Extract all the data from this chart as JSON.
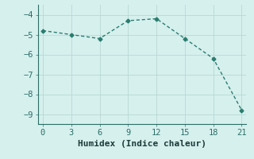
{
  "x": [
    0,
    3,
    6,
    9,
    12,
    15,
    18,
    21
  ],
  "y": [
    -4.8,
    -5.0,
    -5.2,
    -4.3,
    -4.2,
    -5.2,
    -6.2,
    -8.8
  ],
  "line_color": "#2a7d6e",
  "marker": "D",
  "marker_size": 2.5,
  "background_color": "#d6f0ee",
  "grid_color": "#b8d8d4",
  "xlabel": "Humidex (Indice chaleur)",
  "xlim": [
    -0.5,
    21.5
  ],
  "ylim": [
    -9.5,
    -3.5
  ],
  "xticks": [
    0,
    3,
    6,
    9,
    12,
    15,
    18,
    21
  ],
  "yticks": [
    -4,
    -5,
    -6,
    -7,
    -8,
    -9
  ],
  "tick_font_size": 7.5,
  "label_font_size": 8
}
